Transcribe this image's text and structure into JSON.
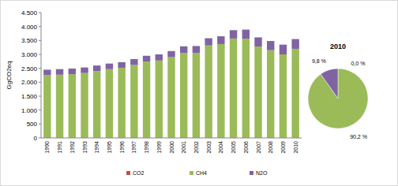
{
  "chart_data": [
    {
      "type": "bar",
      "stacked": true,
      "grid": false,
      "legend": "bottom",
      "y_label": "GgCO2eq",
      "categories": [
        "1990",
        "1991",
        "1992",
        "1993",
        "1994",
        "1995",
        "1996",
        "1997",
        "1998",
        "1999",
        "2000",
        "2001",
        "2002",
        "2003",
        "2004",
        "2005",
        "2006",
        "2007",
        "2008",
        "2009",
        "2010"
      ],
      "series": [
        {
          "name": "CO2",
          "color": "#c0504d",
          "values": [
            0,
            0,
            0,
            0,
            0,
            0,
            0,
            0,
            0,
            0,
            0,
            0,
            0,
            0,
            0,
            0,
            0,
            0,
            0,
            0,
            0
          ]
        },
        {
          "name": "CH4",
          "color": "#9bbb59",
          "values": [
            2260,
            2270,
            2290,
            2330,
            2400,
            2470,
            2520,
            2620,
            2740,
            2780,
            2900,
            3050,
            3050,
            3320,
            3370,
            3570,
            3560,
            3280,
            3150,
            3000,
            3200
          ]
        },
        {
          "name": "N2O",
          "color": "#8064a2",
          "values": [
            190,
            200,
            200,
            200,
            200,
            200,
            200,
            210,
            210,
            220,
            220,
            240,
            250,
            260,
            280,
            300,
            330,
            330,
            330,
            350,
            350
          ]
        }
      ],
      "ylim": [
        0,
        4500
      ],
      "yticks": [
        0,
        {
          "value": 500,
          "label": "500"
        },
        {
          "value": 1000,
          "label": "1.000"
        },
        {
          "value": 1500,
          "label": "1.500"
        },
        {
          "value": 2000,
          "label": "2.000"
        },
        {
          "value": 2500,
          "label": "2.500"
        },
        {
          "value": 3000,
          "label": "3.000"
        },
        {
          "value": 3500,
          "label": "3.500"
        },
        {
          "value": 4000,
          "label": "4.000"
        },
        {
          "value": 4500,
          "label": "4.500"
        }
      ]
    },
    {
      "type": "pie",
      "title": "2010",
      "data_labels": true,
      "values": [
        0.0,
        90.2,
        9.8
      ],
      "value_labels": [
        "0,0 %",
        "90,2 %",
        "9,8 %"
      ],
      "colors": [
        "#c0504d",
        "#9bbb59",
        "#8064a2"
      ]
    }
  ]
}
